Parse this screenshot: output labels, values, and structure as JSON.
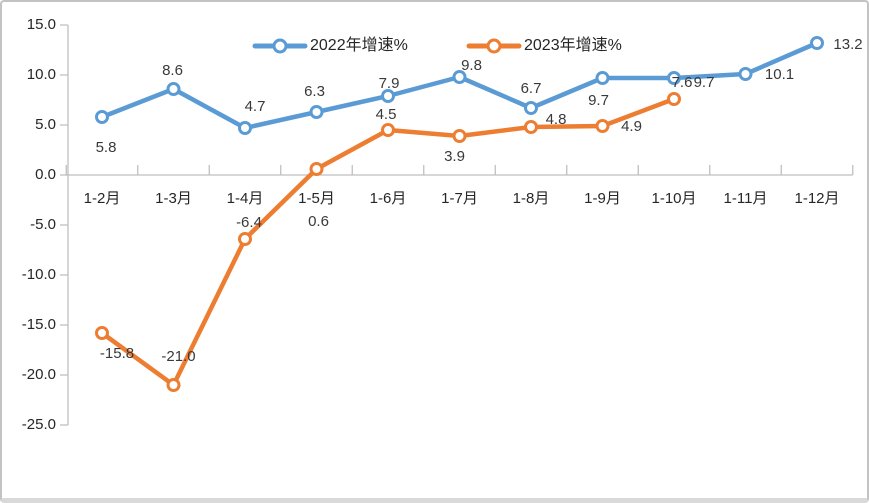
{
  "chart_data": {
    "type": "line",
    "categories": [
      "1-2月",
      "1-3月",
      "1-4月",
      "1-5月",
      "1-6月",
      "1-7月",
      "1-8月",
      "1-9月",
      "1-10月",
      "1-11月",
      "1-12月"
    ],
    "series": [
      {
        "name": "2022年增速%",
        "color": "#5B9BD5",
        "values": [
          5.8,
          8.6,
          4.7,
          6.3,
          7.9,
          9.8,
          6.7,
          9.7,
          9.7,
          10.1,
          13.2
        ],
        "label_offsets": [
          [
            4,
            31
          ],
          [
            -1,
            -18
          ],
          [
            10,
            -21
          ],
          [
            -2,
            -20
          ],
          [
            1,
            -12
          ],
          [
            12,
            -11
          ],
          [
            0,
            -19
          ],
          [
            -4,
            23
          ],
          [
            30,
            5
          ],
          [
            34,
            1
          ],
          [
            31,
            2
          ]
        ]
      },
      {
        "name": "2023年增速%",
        "color": "#ED7D31",
        "values": [
          -15.8,
          -21.0,
          -6.4,
          0.6,
          4.5,
          3.9,
          4.8,
          4.9,
          7.6
        ],
        "label_offsets": [
          [
            15,
            21
          ],
          [
            5,
            -28
          ],
          [
            4,
            -16
          ],
          [
            2,
            53
          ],
          [
            -2,
            -15
          ],
          [
            -5,
            21
          ],
          [
            25,
            -7
          ],
          [
            29,
            1
          ],
          [
            8,
            -16
          ]
        ]
      }
    ],
    "ylim": [
      -25,
      15
    ],
    "ytick_step": 5,
    "ytick_decimals": 1,
    "grid": false,
    "legend_position": "top",
    "value_decimals": 1
  },
  "colors": {
    "axis": "#bfbfbf",
    "label_text": "#393939",
    "series_2022": "#5B9BD5",
    "series_2023": "#ED7D31"
  }
}
